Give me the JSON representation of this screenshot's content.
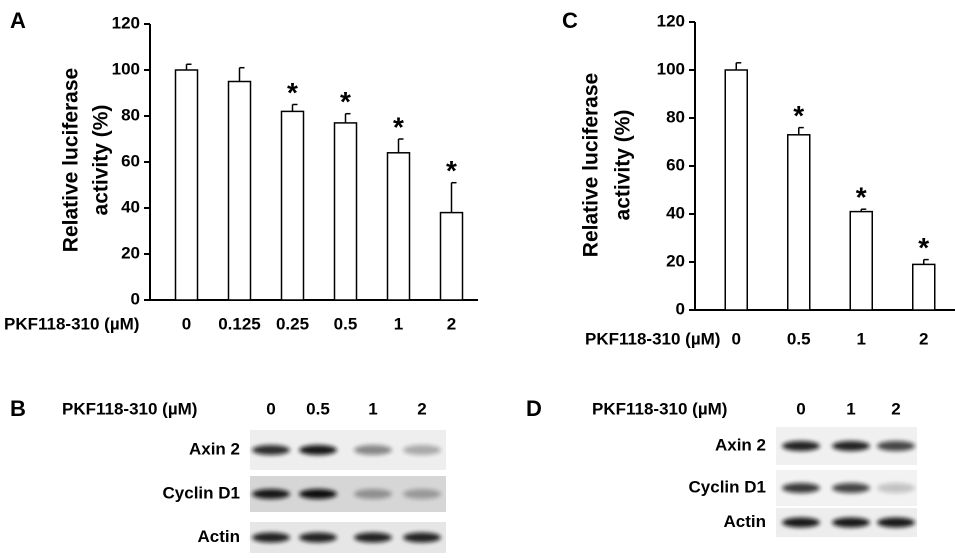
{
  "chart_data": [
    {
      "type": "bar",
      "panel": "A",
      "ylabel": [
        "Relative luciferase",
        "activity (%)"
      ],
      "xlabel": "PKF118-310 (µM)",
      "categories": [
        "0",
        "0.125",
        "0.25",
        "0.5",
        "1",
        "2"
      ],
      "values": [
        100,
        95,
        82,
        77,
        64,
        38
      ],
      "errors": [
        2.5,
        6,
        3,
        4,
        6,
        13
      ],
      "annotations": [
        null,
        null,
        "*",
        "*",
        "*",
        "*"
      ],
      "color": "#ffffff",
      "edgecolor": "#000000",
      "ylim": [
        0,
        120
      ],
      "yticks": [
        0,
        20,
        40,
        60,
        80,
        100,
        120
      ]
    },
    {
      "type": "bar",
      "panel": "C",
      "ylabel": [
        "Relative luciferase",
        "activity (%)"
      ],
      "xlabel": "PKF118-310 (µM)",
      "categories": [
        "0",
        "0.5",
        "1",
        "2"
      ],
      "values": [
        100,
        73,
        41,
        19
      ],
      "errors": [
        3,
        3,
        1,
        2
      ],
      "annotations": [
        null,
        "*",
        "*",
        "*"
      ],
      "color": "#ffffff",
      "edgecolor": "#000000",
      "ylim": [
        0,
        120
      ],
      "yticks": [
        0,
        20,
        40,
        60,
        80,
        100,
        120
      ]
    }
  ],
  "blots": [
    {
      "panel": "B",
      "header": "PKF118-310 (µM)",
      "lanes": [
        "0",
        "0.5",
        "1",
        "2"
      ],
      "rows": [
        "Axin 2",
        "Cyclin D1",
        "Actin"
      ]
    },
    {
      "panel": "D",
      "header": "PKF118-310 (µM)",
      "lanes": [
        "0",
        "1",
        "2"
      ],
      "rows": [
        "Axin 2",
        "Cyclin D1",
        "Actin"
      ]
    }
  ]
}
